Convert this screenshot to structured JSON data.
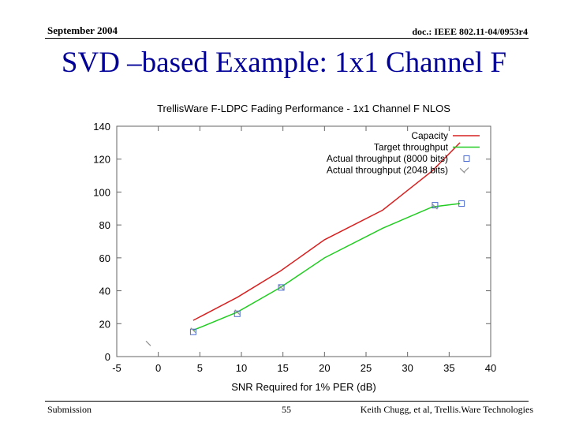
{
  "header": {
    "date": "September 2004",
    "doc_id": "doc.: IEEE 802.11-04/0953r4"
  },
  "slide": {
    "title": "SVD –based Example: 1x1 Channel F"
  },
  "footer": {
    "left": "Submission",
    "page": "55",
    "author": "Keith Chugg, et al, Trellis.Ware Technologies"
  },
  "colors": {
    "capacity": "#d62020",
    "target": "#22cc22",
    "actual_8000": "#4a6ad0",
    "actual_2048": "#909090",
    "title": "#000099"
  },
  "chart_data": {
    "type": "line",
    "title": "TrellisWare F-LDPC Fading Performance - 1x1 Channel F NLOS",
    "xlabel": "SNR Required for 1% PER (dB)",
    "ylabel": "",
    "xlim": [
      -5,
      40
    ],
    "ylim": [
      0,
      140
    ],
    "xticks": [
      -5,
      0,
      5,
      10,
      15,
      20,
      25,
      30,
      35,
      40
    ],
    "yticks": [
      0,
      20,
      40,
      60,
      80,
      100,
      120,
      140
    ],
    "grid": false,
    "legend": "top-right",
    "series": [
      {
        "name": "Capacity",
        "style": "line",
        "x": [
          4.2,
          9.5,
          14.7,
          20,
          27,
          33,
          36.3
        ],
        "y": [
          22,
          36,
          52,
          71,
          89,
          113,
          130
        ]
      },
      {
        "name": "Target throughput",
        "style": "line",
        "x": [
          4.2,
          9.5,
          14.7,
          20,
          27,
          33,
          36.3
        ],
        "y": [
          16,
          27,
          42,
          60,
          78,
          91,
          93
        ]
      },
      {
        "name": "Actual throughput (8000 bits)",
        "style": "points",
        "x": [
          4.2,
          9.5,
          14.8,
          33.3,
          36.5
        ],
        "y": [
          15,
          26,
          42,
          92,
          93
        ]
      },
      {
        "name": "Actual throughput (2048 bits)",
        "style": "points",
        "x": [
          -1.2,
          4.2,
          9.5,
          14.8,
          33.3,
          36.6
        ],
        "y": [
          8,
          16,
          27,
          42,
          91,
          113
        ]
      }
    ]
  }
}
